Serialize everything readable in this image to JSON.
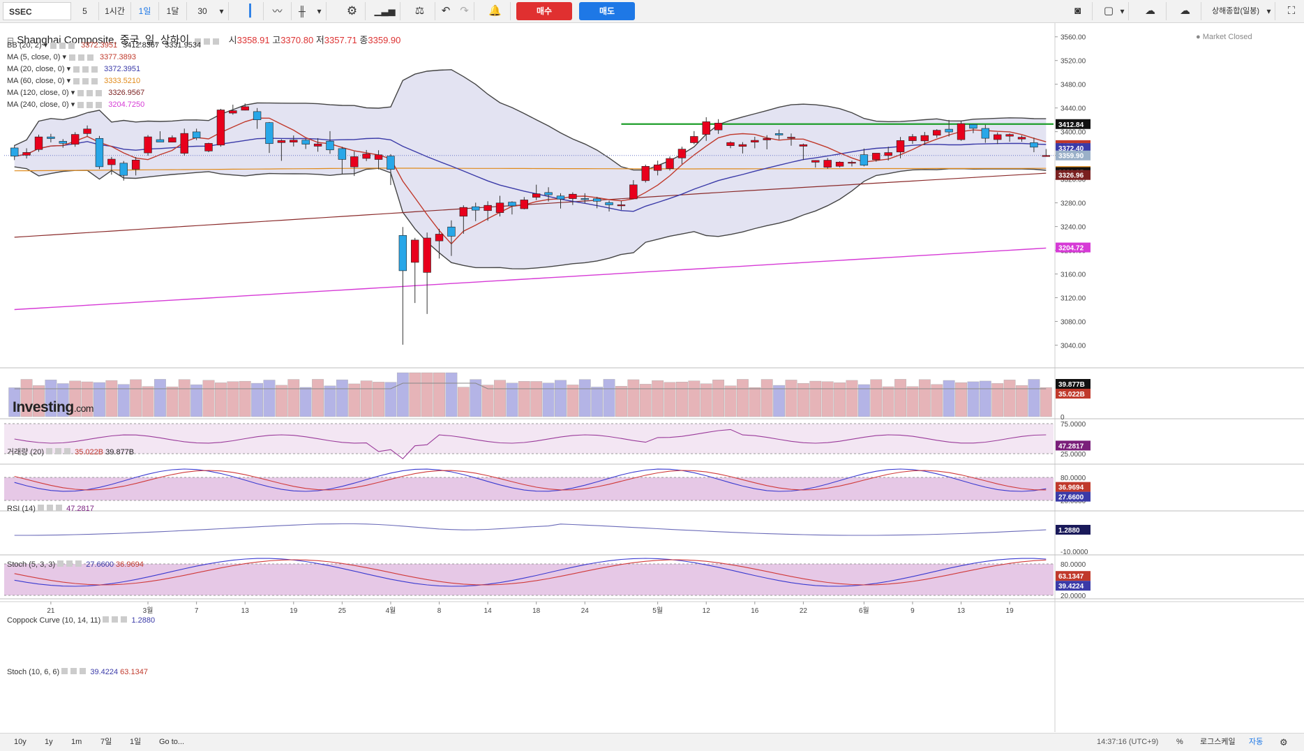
{
  "toolbar": {
    "symbol": "SSEC",
    "interval_value": "5",
    "tf_1h": "1시간",
    "tf_1d": "1일",
    "tf_1m": "1달",
    "count_value": "30",
    "buy_label": "매수",
    "sell_label": "매도",
    "symbol_name_short": "상해종합(일봉)"
  },
  "header": {
    "title": "Shanghai Composite, 중국, 일, 상하이",
    "open_label": "시",
    "open_value": "3358.91",
    "high_label": "고",
    "high_value": "3370.80",
    "low_label": "저",
    "low_value": "3357.71",
    "close_label": "종",
    "close_value": "3359.90",
    "market_status": "Market Closed"
  },
  "legends": [
    {
      "label": "BB (20, 2)",
      "values": [
        "3372.3951",
        "3412.8367",
        "3331.9534"
      ],
      "colors": [
        "#c0392b",
        "#222222",
        "#222222"
      ]
    },
    {
      "label": "MA (5, close, 0)",
      "values": [
        "3377.3893"
      ],
      "colors": [
        "#c0392b"
      ]
    },
    {
      "label": "MA (20, close, 0)",
      "values": [
        "3372.3951"
      ],
      "colors": [
        "#3a3aa8"
      ]
    },
    {
      "label": "MA (60, close, 0)",
      "values": [
        "3333.5210"
      ],
      "colors": [
        "#e08a1a"
      ]
    },
    {
      "label": "MA (120, close, 0)",
      "values": [
        "3326.9567"
      ],
      "colors": [
        "#7a2020"
      ]
    },
    {
      "label": "MA (240, close, 0)",
      "values": [
        "3204.7250"
      ],
      "colors": [
        "#d63ad6"
      ]
    }
  ],
  "logo": {
    "name": "Investing",
    "suffix": ".com"
  },
  "price_axis": {
    "ticks": [
      "3560.00",
      "3520.00",
      "3480.00",
      "3440.00",
      "3400.00",
      "3360.00",
      "3320.00",
      "3280.00",
      "3240.00",
      "3200.00",
      "3160.00",
      "3120.00",
      "3080.00",
      "3040.00"
    ],
    "badges": [
      {
        "text": "3412.84",
        "bg": "#111111",
        "fg": "#ffffff",
        "v": 3412.84
      },
      {
        "text": "3377.39",
        "bg": "#c0392b",
        "fg": "#ffffff",
        "v": 3377.39
      },
      {
        "text": "3372.40",
        "bg": "#3a3aa8",
        "fg": "#ffffff",
        "v": 3372.4
      },
      {
        "text": "3359.90",
        "bg": "#9ab0c8",
        "fg": "#ffffff",
        "v": 3359.9
      },
      {
        "text": "3333.52",
        "bg": "#e08a1a",
        "fg": "#ffffff",
        "v": 3333.52
      },
      {
        "text": "3331.95",
        "bg": "#111111",
        "fg": "#ffffff",
        "v": 3331.95
      },
      {
        "text": "3326.96",
        "bg": "#7a2020",
        "fg": "#ffffff",
        "v": 3326.96
      },
      {
        "text": "3204.72",
        "bg": "#d63ad6",
        "fg": "#ffffff",
        "v": 3204.72
      }
    ]
  },
  "x_axis": {
    "labels": [
      "21",
      "3월",
      "7",
      "13",
      "19",
      "25",
      "4월",
      "8",
      "14",
      "18",
      "24",
      "5월",
      "12",
      "16",
      "22",
      "6월",
      "9",
      "13",
      "19"
    ]
  },
  "panes": {
    "volume": {
      "label": "거래량 (20)",
      "v1": "35.022B",
      "v2": "39.877B",
      "ticks": [
        "0"
      ],
      "badges": [
        "39.877B",
        "35.022B"
      ]
    },
    "rsi": {
      "label": "RSI (14)",
      "value": "47.2817",
      "ticks": [
        "75.0000",
        "25.0000"
      ],
      "badge": "47.2817"
    },
    "stoch1": {
      "label": "Stoch (5, 3, 3)",
      "v1": "27.6600",
      "v2": "36.9694",
      "ticks": [
        "80.0000",
        "20.0000"
      ],
      "badges": [
        "36.9694",
        "27.6600"
      ]
    },
    "coppock": {
      "label": "Coppock Curve (10, 14, 11)",
      "value": "1.2880",
      "ticks": [
        "-10.0000"
      ],
      "badge": "1.2880"
    },
    "stoch2": {
      "label": "Stoch (10, 6, 6)",
      "v1": "39.4224",
      "v2": "63.1347",
      "ticks": [
        "80.0000",
        "20.0000"
      ],
      "badges": [
        "63.1347",
        "39.4224"
      ]
    }
  },
  "bottombar": {
    "ranges": [
      "10y",
      "1y",
      "1m",
      "7일",
      "1일"
    ],
    "goto": "Go to...",
    "clock": "14:37:16 (UTC+9)",
    "percent": "%",
    "log": "로그스케일",
    "auto": "자동"
  },
  "colors": {
    "up": "#e8001c",
    "down": "#28a7e8",
    "bb_fill": "#e3e3f2",
    "resistance": "#1e9e2a"
  },
  "chart_data": {
    "type": "candlestick",
    "y_range": [
      3010,
      3575
    ],
    "resistance_level": 3412.84,
    "candles": [
      [
        3372.6,
        3358.7,
        3377.5,
        3352.1
      ],
      [
        3360.4,
        3365.0,
        3372.0,
        3354.8
      ],
      [
        3369.9,
        3391.2,
        3395.0,
        3366.1
      ],
      [
        3391.2,
        3388.4,
        3396.4,
        3382.0
      ],
      [
        3383.8,
        3380.4,
        3387.5,
        3373.0
      ],
      [
        3378.7,
        3395.4,
        3399.2,
        3374.6
      ],
      [
        3396.8,
        3404.6,
        3410.5,
        3392.1
      ],
      [
        3388.7,
        3340.9,
        3392.9,
        3336.9
      ],
      [
        3344.3,
        3353.7,
        3357.5,
        3327.5
      ],
      [
        3346.9,
        3326.4,
        3350.5,
        3317.5
      ],
      [
        3336.6,
        3352.2,
        3357.3,
        3326.2
      ],
      [
        3364.2,
        3391.3,
        3394.3,
        3359.7
      ],
      [
        3386.6,
        3382.5,
        3400.7,
        3382.5
      ],
      [
        3382.3,
        3390.0,
        3393.8,
        3381.9
      ],
      [
        3363.6,
        3397.1,
        3405.2,
        3359.6
      ],
      [
        3399.7,
        3389.5,
        3405.1,
        3385.8
      ],
      [
        3367.4,
        3380.3,
        3381.4,
        3365.4
      ],
      [
        3377.4,
        3436.7,
        3438.5,
        3374.7
      ],
      [
        3431.3,
        3435.5,
        3445.6,
        3428.7
      ],
      [
        3436.2,
        3442.2,
        3447.6,
        3435.9
      ],
      [
        3433.9,
        3420.0,
        3439.9,
        3404.8
      ],
      [
        3415.3,
        3379.9,
        3416.3,
        3364.1
      ],
      [
        3381.6,
        3385.1,
        3387.2,
        3350.8
      ],
      [
        3382.3,
        3385.8,
        3393.7,
        3375.1
      ],
      [
        3385.8,
        3378.9,
        3387.5,
        3370.8
      ],
      [
        3375.5,
        3379.4,
        3389.1,
        3366.2
      ],
      [
        3384.1,
        3369.3,
        3400.9,
        3362.8
      ],
      [
        3371.5,
        3353.2,
        3374.6,
        3328.0
      ],
      [
        3340.6,
        3357.9,
        3366.7,
        3325.3
      ],
      [
        3354.9,
        3362.5,
        3369.1,
        3350.5
      ],
      [
        3353.1,
        3361.0,
        3368.7,
        3336.4
      ],
      [
        3358.9,
        3336.4,
        3362.1,
        3310.0
      ],
      [
        3225.1,
        3165.5,
        3239.3,
        3040.7
      ],
      [
        3179.6,
        3217.3,
        3220.9,
        3111.1
      ],
      [
        3162.6,
        3220.7,
        3229.9,
        3092.6
      ],
      [
        3215.8,
        3227.2,
        3236.1,
        3186.1
      ],
      [
        3239.3,
        3223.7,
        3250.4,
        3190.5
      ],
      [
        3257.4,
        3272.3,
        3275.8,
        3227.8
      ],
      [
        3273.5,
        3267.6,
        3280.3,
        3249.1
      ],
      [
        3266.9,
        3275.8,
        3282.7,
        3249.8
      ],
      [
        3263.5,
        3279.8,
        3291.9,
        3257.1
      ],
      [
        3281.2,
        3274.9,
        3282.6,
        3260.4
      ],
      [
        3270.1,
        3284.9,
        3289.8,
        3269.1
      ],
      [
        3289.3,
        3295.3,
        3310.6,
        3284.7
      ],
      [
        3297.4,
        3293.5,
        3306.3,
        3282.3
      ],
      [
        3291.6,
        3286.4,
        3296.2,
        3270.4
      ],
      [
        3287.1,
        3294.6,
        3297.7,
        3276.4
      ],
      [
        3287.3,
        3286.6,
        3296.2,
        3279.3
      ],
      [
        3286.9,
        3282.7,
        3290.1,
        3270.8
      ],
      [
        3280.5,
        3276.6,
        3283.7,
        3265.4
      ],
      [
        3275.4,
        3276.7,
        3283.0,
        3268.0
      ],
      [
        3286.7,
        3310.4,
        3318.3,
        3286.2
      ],
      [
        3317.4,
        3341.6,
        3344.4,
        3314.3
      ],
      [
        3334.6,
        3344.1,
        3351.2,
        3326.3
      ],
      [
        3337.7,
        3354.8,
        3358.2,
        3334.5
      ],
      [
        3355.7,
        3370.6,
        3374.7,
        3345.4
      ],
      [
        3381.4,
        3392.0,
        3401.0,
        3378.7
      ],
      [
        3395.4,
        3416.8,
        3424.4,
        3384.5
      ],
      [
        3402.9,
        3414.5,
        3421.1,
        3396.3
      ],
      [
        3376.4,
        3381.7,
        3383.7,
        3372.2
      ],
      [
        3375.2,
        3378.3,
        3382.4,
        3363.3
      ],
      [
        3382.4,
        3385.4,
        3391.4,
        3372.0
      ],
      [
        3386.1,
        3388.7,
        3394.1,
        3370.2
      ],
      [
        3396.9,
        3394.4,
        3403.5,
        3386.8
      ],
      [
        3389.6,
        3390.7,
        3397.0,
        3376.3
      ],
      [
        3375.5,
        3378.1,
        3379.9,
        3352.3
      ],
      [
        3348.5,
        3351.5,
        3352.0,
        3339.5
      ],
      [
        3340.0,
        3351.9,
        3355.6,
        3337.6
      ],
      [
        3341.7,
        3348.7,
        3350.1,
        3339.8
      ],
      [
        3346.8,
        3348.5,
        3351.3,
        3341.4
      ],
      [
        3361.2,
        3343.4,
        3371.6,
        3341.6
      ],
      [
        3352.7,
        3363.8,
        3362.3,
        3349.5
      ],
      [
        3359.7,
        3364.8,
        3374.7,
        3351.3
      ],
      [
        3365.7,
        3385.1,
        3391.1,
        3355.1
      ],
      [
        3384.8,
        3391.8,
        3396.0,
        3379.5
      ],
      [
        3384.5,
        3393.6,
        3399.5,
        3377.6
      ],
      [
        3394.0,
        3402.4,
        3404.2,
        3389.7
      ],
      [
        3404.2,
        3399.5,
        3419.8,
        3391.8
      ],
      [
        3386.6,
        3413.5,
        3418.6,
        3384.6
      ],
      [
        3412.2,
        3405.7,
        3412.8,
        3397.5
      ],
      [
        3405.5,
        3388.9,
        3411.7,
        3381.3
      ],
      [
        3386.7,
        3395.0,
        3398.8,
        3379.0
      ],
      [
        3392.4,
        3395.3,
        3397.1,
        3383.1
      ],
      [
        3387.6,
        3390.6,
        3393.7,
        3383.0
      ],
      [
        3381.5,
        3373.9,
        3390.0,
        3365.4
      ],
      [
        3358.9,
        3359.9,
        3370.8,
        3357.7
      ]
    ]
  }
}
